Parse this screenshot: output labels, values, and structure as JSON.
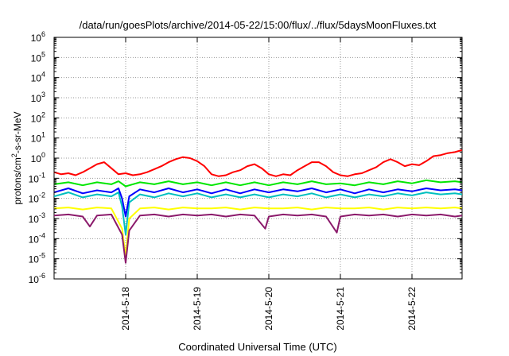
{
  "chart_data": {
    "type": "line",
    "title": "/data/run/goesPlots/archive/2014-05-22/15:00/flux/../flux/5daysMoonFluxes.txt",
    "xlabel": "Coordinated Universal Time (UTC)",
    "ylabel": {
      "prefix": "protons/cm",
      "sup": "2",
      "suffix": "-s-sr-MeV"
    },
    "log_scale_y": true,
    "grid": true,
    "legend": "none",
    "xlim": [
      0,
      5.7
    ],
    "ylim": [
      -6,
      6
    ],
    "x_ticks": [
      {
        "x": 1,
        "label": "2014-5-18"
      },
      {
        "x": 2,
        "label": "2014-5-19"
      },
      {
        "x": 3,
        "label": "2014-5-20"
      },
      {
        "x": 4,
        "label": "2014-5-21"
      },
      {
        "x": 5,
        "label": "2014-5-22"
      }
    ],
    "y_ticks": [
      {
        "exp": -6,
        "base": "10",
        "sup": "-6"
      },
      {
        "exp": -5,
        "base": "10",
        "sup": "-5"
      },
      {
        "exp": -4,
        "base": "10",
        "sup": "-4"
      },
      {
        "exp": -3,
        "base": "10",
        "sup": "-3"
      },
      {
        "exp": -2,
        "base": "10",
        "sup": "-2"
      },
      {
        "exp": -1,
        "base": "10",
        "sup": "-1"
      },
      {
        "exp": 0,
        "base": "10",
        "sup": "0"
      },
      {
        "exp": 1,
        "base": "10",
        "sup": "1"
      },
      {
        "exp": 2,
        "base": "10",
        "sup": "2"
      },
      {
        "exp": 3,
        "base": "10",
        "sup": "3"
      },
      {
        "exp": 4,
        "base": "10",
        "sup": "4"
      },
      {
        "exp": 5,
        "base": "10",
        "sup": "5"
      },
      {
        "exp": 6,
        "base": "10",
        "sup": "6"
      }
    ],
    "series": [
      {
        "color": "#ff0000",
        "points": [
          [
            0.0,
            -0.7
          ],
          [
            0.1,
            -0.8
          ],
          [
            0.2,
            -0.75
          ],
          [
            0.3,
            -0.85
          ],
          [
            0.4,
            -0.7
          ],
          [
            0.5,
            -0.5
          ],
          [
            0.6,
            -0.3
          ],
          [
            0.7,
            -0.2
          ],
          [
            0.8,
            -0.5
          ],
          [
            0.9,
            -0.8
          ],
          [
            1.0,
            -0.75
          ],
          [
            1.1,
            -0.85
          ],
          [
            1.2,
            -0.8
          ],
          [
            1.3,
            -0.7
          ],
          [
            1.4,
            -0.55
          ],
          [
            1.5,
            -0.4
          ],
          [
            1.6,
            -0.2
          ],
          [
            1.7,
            -0.05
          ],
          [
            1.8,
            0.05
          ],
          [
            1.9,
            0.0
          ],
          [
            2.0,
            -0.15
          ],
          [
            2.1,
            -0.4
          ],
          [
            2.2,
            -0.8
          ],
          [
            2.3,
            -0.9
          ],
          [
            2.4,
            -0.85
          ],
          [
            2.5,
            -0.7
          ],
          [
            2.6,
            -0.6
          ],
          [
            2.7,
            -0.4
          ],
          [
            2.8,
            -0.3
          ],
          [
            2.9,
            -0.5
          ],
          [
            3.0,
            -0.8
          ],
          [
            3.1,
            -0.9
          ],
          [
            3.2,
            -0.8
          ],
          [
            3.3,
            -0.85
          ],
          [
            3.4,
            -0.6
          ],
          [
            3.5,
            -0.4
          ],
          [
            3.6,
            -0.2
          ],
          [
            3.7,
            -0.2
          ],
          [
            3.8,
            -0.4
          ],
          [
            3.9,
            -0.7
          ],
          [
            4.0,
            -0.85
          ],
          [
            4.1,
            -0.9
          ],
          [
            4.2,
            -0.8
          ],
          [
            4.3,
            -0.75
          ],
          [
            4.4,
            -0.6
          ],
          [
            4.5,
            -0.45
          ],
          [
            4.6,
            -0.2
          ],
          [
            4.7,
            -0.05
          ],
          [
            4.8,
            -0.2
          ],
          [
            4.9,
            -0.4
          ],
          [
            5.0,
            -0.3
          ],
          [
            5.1,
            -0.35
          ],
          [
            5.2,
            -0.15
          ],
          [
            5.3,
            0.1
          ],
          [
            5.4,
            0.15
          ],
          [
            5.5,
            0.25
          ],
          [
            5.6,
            0.3
          ],
          [
            5.7,
            0.4
          ]
        ]
      },
      {
        "color": "#00e600",
        "points": [
          [
            0.0,
            -1.3
          ],
          [
            0.2,
            -1.2
          ],
          [
            0.4,
            -1.35
          ],
          [
            0.6,
            -1.2
          ],
          [
            0.8,
            -1.3
          ],
          [
            0.9,
            -1.15
          ],
          [
            1.0,
            -1.4
          ],
          [
            1.1,
            -1.3
          ],
          [
            1.2,
            -1.2
          ],
          [
            1.4,
            -1.3
          ],
          [
            1.6,
            -1.15
          ],
          [
            1.8,
            -1.3
          ],
          [
            2.0,
            -1.2
          ],
          [
            2.2,
            -1.35
          ],
          [
            2.4,
            -1.2
          ],
          [
            2.6,
            -1.35
          ],
          [
            2.8,
            -1.2
          ],
          [
            3.0,
            -1.35
          ],
          [
            3.2,
            -1.2
          ],
          [
            3.4,
            -1.3
          ],
          [
            3.6,
            -1.15
          ],
          [
            3.8,
            -1.3
          ],
          [
            4.0,
            -1.25
          ],
          [
            4.2,
            -1.35
          ],
          [
            4.4,
            -1.2
          ],
          [
            4.6,
            -1.3
          ],
          [
            4.8,
            -1.15
          ],
          [
            5.0,
            -1.25
          ],
          [
            5.2,
            -1.1
          ],
          [
            5.4,
            -1.2
          ],
          [
            5.6,
            -1.15
          ],
          [
            5.7,
            -1.2
          ]
        ]
      },
      {
        "color": "#00bfbf",
        "points": [
          [
            0.0,
            -1.9
          ],
          [
            0.2,
            -1.7
          ],
          [
            0.4,
            -1.95
          ],
          [
            0.6,
            -1.8
          ],
          [
            0.8,
            -1.9
          ],
          [
            0.9,
            -1.7
          ],
          [
            0.95,
            -2.4
          ],
          [
            1.0,
            -3.8
          ],
          [
            1.05,
            -2.2
          ],
          [
            1.2,
            -1.8
          ],
          [
            1.4,
            -1.95
          ],
          [
            1.6,
            -1.75
          ],
          [
            1.8,
            -1.9
          ],
          [
            2.0,
            -1.75
          ],
          [
            2.2,
            -1.95
          ],
          [
            2.4,
            -1.8
          ],
          [
            2.6,
            -1.95
          ],
          [
            2.8,
            -1.8
          ],
          [
            3.0,
            -1.95
          ],
          [
            3.2,
            -1.8
          ],
          [
            3.4,
            -1.9
          ],
          [
            3.6,
            -1.75
          ],
          [
            3.8,
            -1.95
          ],
          [
            4.0,
            -1.8
          ],
          [
            4.2,
            -1.95
          ],
          [
            4.4,
            -1.8
          ],
          [
            4.6,
            -1.9
          ],
          [
            4.8,
            -1.75
          ],
          [
            5.0,
            -1.85
          ],
          [
            5.2,
            -1.7
          ],
          [
            5.4,
            -1.8
          ],
          [
            5.6,
            -1.75
          ],
          [
            5.7,
            -1.8
          ]
        ]
      },
      {
        "color": "#0000ff",
        "points": [
          [
            0.0,
            -1.7
          ],
          [
            0.2,
            -1.5
          ],
          [
            0.4,
            -1.75
          ],
          [
            0.6,
            -1.6
          ],
          [
            0.8,
            -1.7
          ],
          [
            0.9,
            -1.5
          ],
          [
            0.95,
            -2.0
          ],
          [
            1.0,
            -2.9
          ],
          [
            1.05,
            -1.9
          ],
          [
            1.2,
            -1.55
          ],
          [
            1.4,
            -1.7
          ],
          [
            1.6,
            -1.5
          ],
          [
            1.8,
            -1.7
          ],
          [
            2.0,
            -1.55
          ],
          [
            2.2,
            -1.75
          ],
          [
            2.4,
            -1.55
          ],
          [
            2.6,
            -1.75
          ],
          [
            2.8,
            -1.55
          ],
          [
            3.0,
            -1.7
          ],
          [
            3.2,
            -1.55
          ],
          [
            3.4,
            -1.65
          ],
          [
            3.6,
            -1.5
          ],
          [
            3.8,
            -1.7
          ],
          [
            4.0,
            -1.55
          ],
          [
            4.2,
            -1.75
          ],
          [
            4.4,
            -1.55
          ],
          [
            4.6,
            -1.7
          ],
          [
            4.8,
            -1.55
          ],
          [
            5.0,
            -1.65
          ],
          [
            5.2,
            -1.5
          ],
          [
            5.4,
            -1.6
          ],
          [
            5.6,
            -1.55
          ],
          [
            5.7,
            -1.6
          ]
        ]
      },
      {
        "color": "#ffff00",
        "points": [
          [
            0.0,
            -2.5
          ],
          [
            0.2,
            -2.45
          ],
          [
            0.4,
            -2.55
          ],
          [
            0.6,
            -2.45
          ],
          [
            0.8,
            -2.5
          ],
          [
            0.95,
            -3.5
          ],
          [
            1.0,
            -4.9
          ],
          [
            1.05,
            -3.0
          ],
          [
            1.2,
            -2.5
          ],
          [
            1.4,
            -2.45
          ],
          [
            1.6,
            -2.55
          ],
          [
            1.8,
            -2.45
          ],
          [
            2.0,
            -2.5
          ],
          [
            2.2,
            -2.5
          ],
          [
            2.4,
            -2.45
          ],
          [
            2.6,
            -2.55
          ],
          [
            2.8,
            -2.45
          ],
          [
            3.0,
            -2.5
          ],
          [
            3.2,
            -2.5
          ],
          [
            3.4,
            -2.45
          ],
          [
            3.6,
            -2.55
          ],
          [
            3.8,
            -2.45
          ],
          [
            4.0,
            -2.5
          ],
          [
            4.2,
            -2.5
          ],
          [
            4.4,
            -2.45
          ],
          [
            4.6,
            -2.55
          ],
          [
            4.8,
            -2.45
          ],
          [
            5.0,
            -2.5
          ],
          [
            5.2,
            -2.45
          ],
          [
            5.4,
            -2.5
          ],
          [
            5.6,
            -2.45
          ],
          [
            5.7,
            -2.5
          ]
        ]
      },
      {
        "color": "#8b1a6b",
        "points": [
          [
            0.0,
            -2.85
          ],
          [
            0.2,
            -2.8
          ],
          [
            0.4,
            -2.9
          ],
          [
            0.5,
            -3.4
          ],
          [
            0.6,
            -2.85
          ],
          [
            0.8,
            -2.8
          ],
          [
            0.95,
            -3.8
          ],
          [
            1.0,
            -5.2
          ],
          [
            1.05,
            -3.6
          ],
          [
            1.2,
            -2.85
          ],
          [
            1.4,
            -2.8
          ],
          [
            1.6,
            -2.9
          ],
          [
            1.8,
            -2.8
          ],
          [
            2.0,
            -2.85
          ],
          [
            2.2,
            -2.8
          ],
          [
            2.4,
            -2.9
          ],
          [
            2.6,
            -2.8
          ],
          [
            2.8,
            -2.85
          ],
          [
            2.95,
            -3.5
          ],
          [
            3.0,
            -2.9
          ],
          [
            3.2,
            -2.8
          ],
          [
            3.4,
            -2.85
          ],
          [
            3.6,
            -2.8
          ],
          [
            3.8,
            -2.9
          ],
          [
            3.95,
            -3.7
          ],
          [
            4.0,
            -2.9
          ],
          [
            4.2,
            -2.8
          ],
          [
            4.4,
            -2.85
          ],
          [
            4.6,
            -2.8
          ],
          [
            4.8,
            -2.9
          ],
          [
            5.0,
            -2.8
          ],
          [
            5.2,
            -2.85
          ],
          [
            5.4,
            -2.8
          ],
          [
            5.6,
            -2.9
          ],
          [
            5.7,
            -2.85
          ]
        ]
      }
    ]
  }
}
